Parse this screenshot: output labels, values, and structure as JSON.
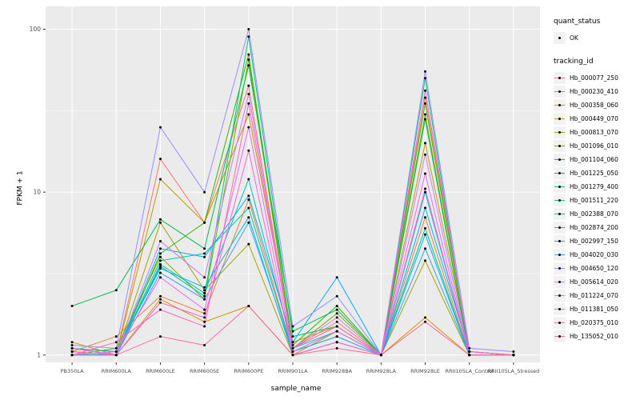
{
  "figure": {
    "background": "#FFFFFF",
    "panel_background": "#EBEBEB",
    "grid_color": "#FFFFFF",
    "point_color": "#000000"
  },
  "axes": {
    "x_label": "sample_name",
    "y_label": "FPKM + 1"
  },
  "legend": {
    "quant_status": {
      "title": "quant_status",
      "items": [
        {
          "label": "OK",
          "symbol": "point",
          "color": "#000000"
        }
      ]
    },
    "tracking_id": {
      "title": "tracking_id"
    }
  },
  "chart_data": {
    "type": "line",
    "x_type": "categorical",
    "y_scale": "log10",
    "title": "",
    "xlabel": "sample_name",
    "ylabel": "FPKM + 1",
    "y_ticks": [
      1,
      10,
      100
    ],
    "ylim": [
      1,
      126
    ],
    "grid": true,
    "legend_position": "right",
    "categories": [
      "PB350LA",
      "RRIM600LA",
      "RRIM600LE",
      "RRIM600SE",
      "RRIM600PE",
      "RRIM901LA",
      "RRIM928BA",
      "RRIM928LA",
      "RRIM928LE",
      "RRII105LA_Control",
      "RRII105LA_Stressed"
    ],
    "series": [
      {
        "name": "Hb_000077_250",
        "color": "#F8766D",
        "values": [
          1.1,
          1.0,
          16,
          6.5,
          45,
          1.1,
          1.6,
          1.0,
          38,
          1.05,
          1.0
        ]
      },
      {
        "name": "Hb_000230_410",
        "color": "#EA8331",
        "values": [
          1.05,
          1.3,
          2.3,
          1.8,
          9,
          1.05,
          1.3,
          1.0,
          7,
          1.0,
          1.0
        ]
      },
      {
        "name": "Hb_000358_060",
        "color": "#D89000",
        "values": [
          1.2,
          1.0,
          2.2,
          1.6,
          2.0,
          1.0,
          1.2,
          1.0,
          1.7,
          1.0,
          1.0
        ]
      },
      {
        "name": "Hb_000449_070",
        "color": "#C09B00",
        "values": [
          1.0,
          1.0,
          12,
          6.5,
          30,
          1.2,
          1.5,
          1.0,
          20,
          1.05,
          1.0
        ]
      },
      {
        "name": "Hb_000813_070",
        "color": "#A3A500",
        "values": [
          1.1,
          1.0,
          6.5,
          2.5,
          4.8,
          1.0,
          1.4,
          1.0,
          3.8,
          1.0,
          1.0
        ]
      },
      {
        "name": "Hb_001096_010",
        "color": "#7CAE00",
        "values": [
          1.0,
          1.1,
          4.0,
          2.2,
          65,
          1.1,
          1.8,
          1.0,
          30,
          1.0,
          1.0
        ]
      },
      {
        "name": "Hb_001104_060",
        "color": "#39B600",
        "values": [
          1.05,
          1.0,
          4.2,
          6.5,
          70,
          1.15,
          2.0,
          1.0,
          35,
          1.05,
          1.0
        ]
      },
      {
        "name": "Hb_001225_050",
        "color": "#00BB4E",
        "values": [
          2.0,
          2.5,
          6.8,
          4.5,
          60,
          1.4,
          1.9,
          1.0,
          28,
          1.0,
          1.0
        ]
      },
      {
        "name": "Hb_001279_400",
        "color": "#00BF7D",
        "values": [
          1.1,
          1.05,
          3.5,
          2.3,
          90,
          1.3,
          1.5,
          1.0,
          50,
          1.0,
          1.0
        ]
      },
      {
        "name": "Hb_001511_220",
        "color": "#00C1A3",
        "values": [
          1.0,
          1.0,
          3.8,
          4.2,
          8,
          1.05,
          1.3,
          1.0,
          6,
          1.0,
          1.0
        ]
      },
      {
        "name": "Hb_002388_070",
        "color": "#00BFC4",
        "values": [
          1.05,
          1.0,
          3.6,
          2.4,
          12,
          1.1,
          1.4,
          1.0,
          10,
          1.0,
          1.0
        ]
      },
      {
        "name": "Hb_002874_200",
        "color": "#00BAE0",
        "values": [
          1.0,
          1.05,
          3.4,
          2.6,
          7,
          1.0,
          1.2,
          1.0,
          5.5,
          1.0,
          1.0
        ]
      },
      {
        "name": "Hb_002997_150",
        "color": "#00B0F6",
        "values": [
          1.1,
          1.0,
          4.5,
          4.0,
          9.5,
          1.2,
          3.0,
          1.0,
          8,
          1.05,
          1.0
        ]
      },
      {
        "name": "Hb_004020_030",
        "color": "#35A2FF",
        "values": [
          1.0,
          1.0,
          3.2,
          2.2,
          6.5,
          1.05,
          1.3,
          1.0,
          4.5,
          1.0,
          1.0
        ]
      },
      {
        "name": "Hb_004650_120",
        "color": "#9590FF",
        "values": [
          1.15,
          1.1,
          25,
          10,
          100,
          1.5,
          2.3,
          1.0,
          55,
          1.1,
          1.05
        ]
      },
      {
        "name": "Hb_005614_020",
        "color": "#C77CFF",
        "values": [
          1.05,
          1.0,
          5.0,
          3.0,
          40,
          1.1,
          1.7,
          1.0,
          17,
          1.0,
          1.0
        ]
      },
      {
        "name": "Hb_011224_070",
        "color": "#E76BF3",
        "values": [
          1.0,
          1.05,
          3.0,
          1.9,
          25,
          1.05,
          1.4,
          1.0,
          13,
          1.0,
          1.0
        ]
      },
      {
        "name": "Hb_011381_050",
        "color": "#FA62DB",
        "values": [
          1.1,
          1.0,
          2.1,
          1.7,
          18,
          1.0,
          1.2,
          1.0,
          10.5,
          1.0,
          1.0
        ]
      },
      {
        "name": "Hb_020375_010",
        "color": "#FF62BC",
        "values": [
          1.0,
          1.2,
          1.9,
          1.5,
          35,
          1.1,
          1.5,
          1.0,
          42,
          1.05,
          1.0
        ]
      },
      {
        "name": "Hb_135052_010",
        "color": "#FF6A98",
        "values": [
          1.05,
          1.0,
          1.3,
          1.15,
          2.0,
          1.0,
          1.1,
          1.0,
          1.6,
          1.0,
          1.0
        ]
      }
    ]
  }
}
